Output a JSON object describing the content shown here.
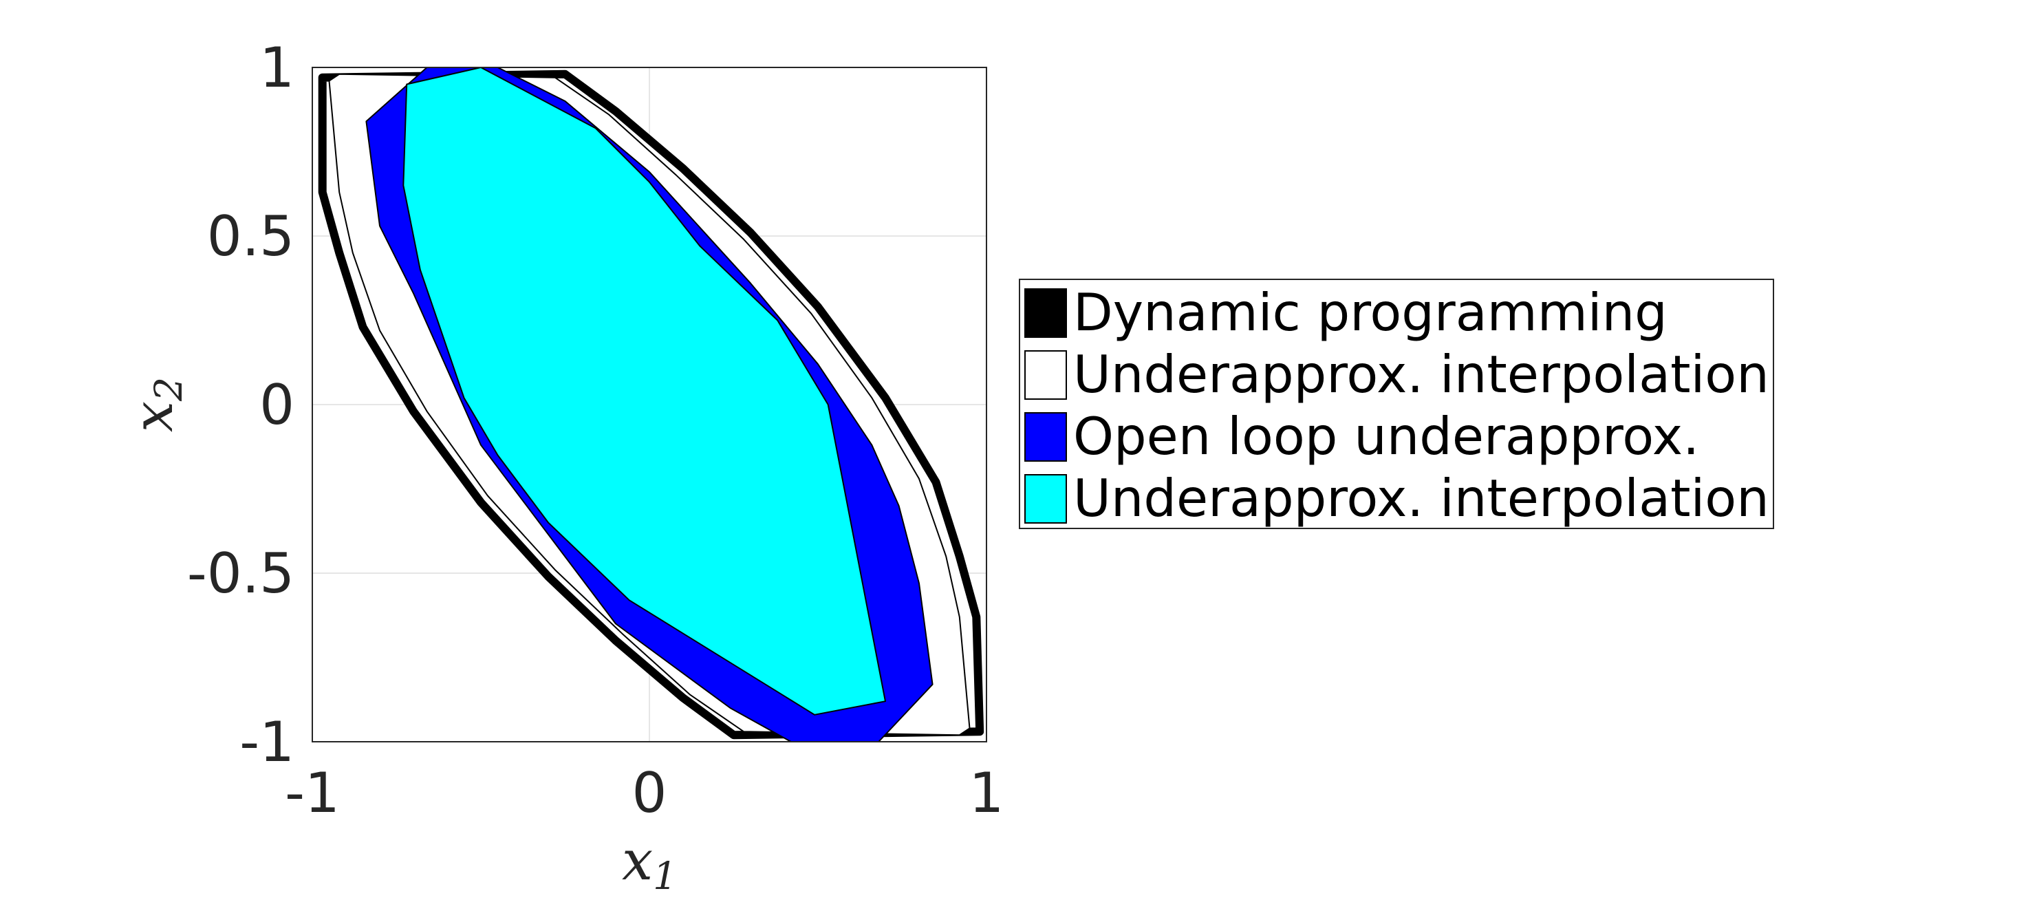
{
  "chart_data": {
    "type": "area",
    "xlabel": "x",
    "xlabel_sub": "1",
    "ylabel": "x",
    "ylabel_sub": "2",
    "xlim": [
      -1,
      1
    ],
    "ylim": [
      -1,
      1
    ],
    "xticks": [
      -1,
      0,
      1
    ],
    "yticks": [
      -1,
      -0.5,
      0,
      0.5,
      1
    ],
    "xtick_labels": [
      "-1",
      "0",
      "1"
    ],
    "ytick_labels": [
      "-1",
      "-0.5",
      "0",
      "0.5",
      "1"
    ],
    "grid": true,
    "legend_position": "right-outside",
    "series": [
      {
        "name": "Dynamic programming",
        "color": "#000000",
        "points": [
          [
            -0.97,
            0.97
          ],
          [
            -0.25,
            0.98
          ],
          [
            -0.1,
            0.87
          ],
          [
            0.1,
            0.7
          ],
          [
            0.3,
            0.51
          ],
          [
            0.5,
            0.29
          ],
          [
            0.7,
            0.02
          ],
          [
            0.85,
            -0.23
          ],
          [
            0.92,
            -0.45
          ],
          [
            0.97,
            -0.63
          ],
          [
            0.98,
            -0.97
          ],
          [
            0.25,
            -0.98
          ],
          [
            0.1,
            -0.87
          ],
          [
            -0.1,
            -0.7
          ],
          [
            -0.3,
            -0.51
          ],
          [
            -0.5,
            -0.29
          ],
          [
            -0.7,
            -0.02
          ],
          [
            -0.85,
            0.23
          ],
          [
            -0.92,
            0.45
          ],
          [
            -0.97,
            0.63
          ]
        ]
      },
      {
        "name": "Underapprox. interpolation",
        "color": "#ffffff",
        "points": [
          [
            -0.95,
            0.96
          ],
          [
            -0.92,
            0.98
          ],
          [
            -0.28,
            0.97
          ],
          [
            -0.12,
            0.86
          ],
          [
            0.08,
            0.68
          ],
          [
            0.28,
            0.49
          ],
          [
            0.48,
            0.27
          ],
          [
            0.66,
            0.02
          ],
          [
            0.8,
            -0.22
          ],
          [
            0.88,
            -0.45
          ],
          [
            0.92,
            -0.63
          ],
          [
            0.95,
            -0.96
          ],
          [
            0.92,
            -0.98
          ],
          [
            0.28,
            -0.97
          ],
          [
            0.12,
            -0.86
          ],
          [
            -0.08,
            -0.68
          ],
          [
            -0.28,
            -0.49
          ],
          [
            -0.48,
            -0.27
          ],
          [
            -0.66,
            -0.02
          ],
          [
            -0.8,
            0.22
          ],
          [
            -0.88,
            0.45
          ],
          [
            -0.92,
            0.63
          ]
        ]
      },
      {
        "name": "Open loop underapprox.",
        "color": "#0000ff",
        "points": [
          [
            -0.84,
            0.84
          ],
          [
            -0.66,
            1.0
          ],
          [
            -0.45,
            1.0
          ],
          [
            -0.25,
            0.9
          ],
          [
            0.0,
            0.69
          ],
          [
            0.3,
            0.36
          ],
          [
            0.5,
            0.12
          ],
          [
            0.66,
            -0.12
          ],
          [
            0.74,
            -0.3
          ],
          [
            0.8,
            -0.53
          ],
          [
            0.84,
            -0.83
          ],
          [
            0.68,
            -1.0
          ],
          [
            0.42,
            -1.0
          ],
          [
            0.24,
            -0.9
          ],
          [
            -0.1,
            -0.65
          ],
          [
            -0.5,
            -0.12
          ],
          [
            -0.7,
            0.33
          ],
          [
            -0.8,
            0.53
          ]
        ]
      },
      {
        "name": "Underapprox. interpolation",
        "color": "#00ffff",
        "points": [
          [
            -0.72,
            0.95
          ],
          [
            -0.5,
            1.0
          ],
          [
            -0.16,
            0.82
          ],
          [
            0.0,
            0.66
          ],
          [
            0.15,
            0.47
          ],
          [
            0.38,
            0.25
          ],
          [
            0.53,
            0.0
          ],
          [
            0.7,
            -0.88
          ],
          [
            0.49,
            -0.92
          ],
          [
            -0.06,
            -0.58
          ],
          [
            -0.3,
            -0.35
          ],
          [
            -0.45,
            -0.15
          ],
          [
            -0.55,
            0.02
          ],
          [
            -0.68,
            0.4
          ],
          [
            -0.73,
            0.65
          ]
        ]
      }
    ]
  }
}
